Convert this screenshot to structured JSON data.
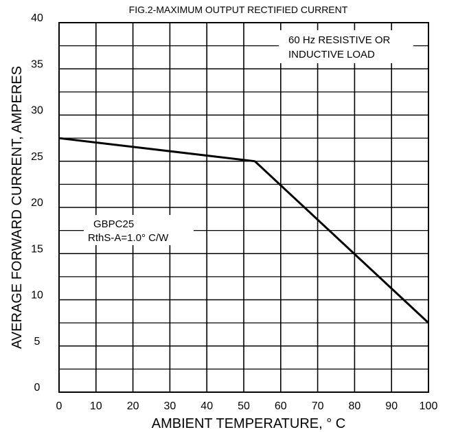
{
  "chart_data": {
    "type": "line",
    "title": "FIG.2-MAXIMUM OUTPUT RECTIFIED CURRENT",
    "xlabel": "AMBIENT TEMPERATURE, ° C",
    "ylabel": "AVERAGE FORWARD CURRENT, AMPERES",
    "xlim": [
      0,
      100
    ],
    "ylim": [
      0,
      40
    ],
    "grid": true,
    "x_ticks": [
      "0",
      "10",
      "20",
      "30",
      "40",
      "50",
      "60",
      "70",
      "80",
      "90",
      "100"
    ],
    "y_ticks": [
      "0",
      "5",
      "10",
      "15",
      "20",
      "25",
      "30",
      "35",
      "40"
    ],
    "series": [
      {
        "x": [
          0,
          53,
          100
        ],
        "y": [
          27.5,
          25,
          7.5
        ]
      }
    ],
    "annotations": {
      "load_note": [
        "60 Hz RESISTIVE OR",
        "INDUCTIVE LOAD"
      ],
      "device_note": [
        "GBPC25",
        "RthS-A=1.0° C/W"
      ]
    }
  }
}
